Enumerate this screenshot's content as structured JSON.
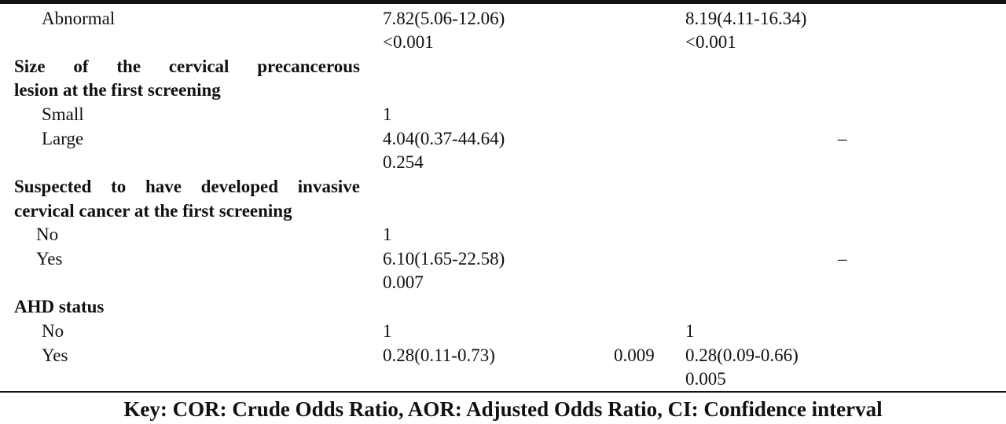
{
  "rows": [
    {
      "label": "Abnormal",
      "cor": "7.82(5.06-12.06)",
      "cor_p": "<0.001",
      "aor": "8.19(4.11-16.34)",
      "aor_p": "<0.001"
    },
    {
      "heading": [
        "Size of the cervical precancerous",
        "lesion at the first screening"
      ]
    },
    {
      "label": "Small",
      "cor": "1"
    },
    {
      "label": "Large",
      "cor": "4.04(0.37-44.64)",
      "cor_p": "0.254",
      "aor": "–"
    },
    {
      "heading": [
        "Suspected to have developed invasive",
        "cervical cancer at the first screening"
      ]
    },
    {
      "label": "No",
      "cor": "1"
    },
    {
      "label": "Yes",
      "cor": "6.10(1.65-22.58)",
      "cor_p": "0.007",
      "aor": "–"
    },
    {
      "heading": [
        "AHD status"
      ]
    },
    {
      "label": "No",
      "cor": "1",
      "aor": "1"
    },
    {
      "label": "Yes",
      "cor": "0.28(0.11-0.73)",
      "cor_p": "0.009",
      "aor": "0.28(0.09-0.66)",
      "aor_p": "0.005"
    }
  ],
  "key": "Key: COR: Crude Odds Ratio, AOR: Adjusted Odds Ratio, CI: Confidence interval"
}
